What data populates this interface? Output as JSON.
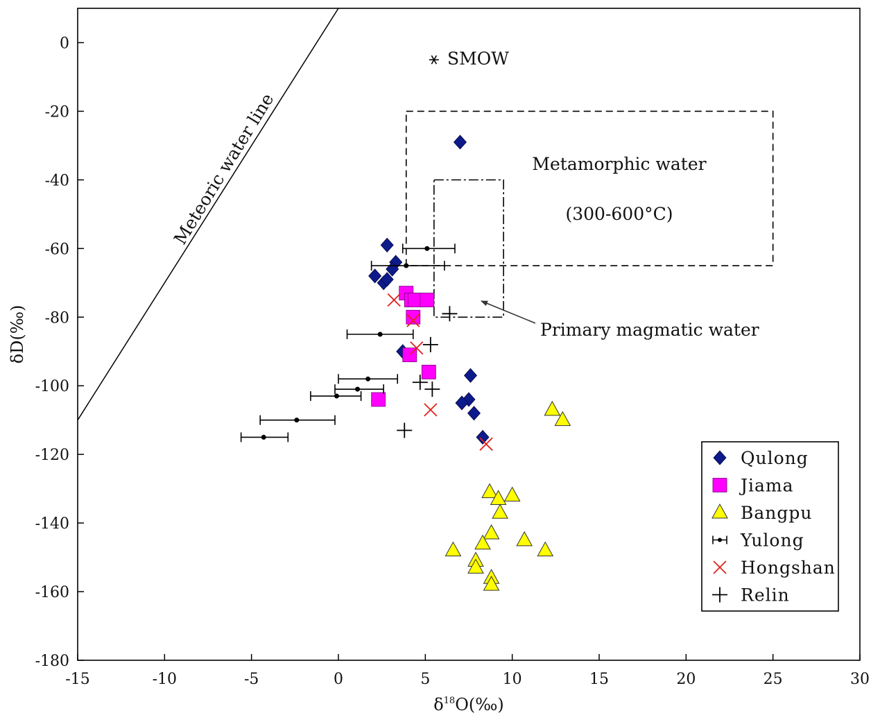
{
  "chart_data": {
    "type": "scatter",
    "xlabel_main": "δ",
    "xlabel_sup": "18",
    "xlabel_rest": "O(‰)",
    "ylabel": "δD(‰)",
    "xlim": [
      -15,
      30
    ],
    "ylim": [
      -180,
      10
    ],
    "xticks": [
      "-15",
      "-10",
      "-5",
      "0",
      "5",
      "10",
      "15",
      "20",
      "25",
      "30"
    ],
    "yticks": [
      "0",
      "-20",
      "-40",
      "-60",
      "-80",
      "-100",
      "-120",
      "-140",
      "-160",
      "-180"
    ],
    "grid": false,
    "legend_position": "bottom-right",
    "annotations": {
      "meteoric": "Meteoric water line",
      "smow": "SMOW",
      "metamorphic_1": "Metamorphic water",
      "metamorphic_2": "(300-600°C)",
      "magmatic": "Primary magmatic  water"
    },
    "reference": {
      "meteoric_line": {
        "slope": 8,
        "intercept": 10
      },
      "smow": {
        "x": 5.5,
        "y": -5
      },
      "metamorphic_box": {
        "x": [
          3.9,
          25
        ],
        "y": [
          -65,
          -20
        ]
      },
      "magmatic_box": {
        "x": [
          5.5,
          9.5
        ],
        "y": [
          -80,
          -40
        ]
      }
    },
    "series": [
      {
        "name": "Qulong",
        "marker": "diamond",
        "color": "#0d1a8c",
        "points": [
          [
            7.0,
            -29
          ],
          [
            2.8,
            -59
          ],
          [
            3.3,
            -64
          ],
          [
            3.1,
            -66
          ],
          [
            2.1,
            -68
          ],
          [
            2.6,
            -70
          ],
          [
            2.8,
            -69
          ],
          [
            3.7,
            -90
          ],
          [
            7.6,
            -97
          ],
          [
            7.5,
            -104
          ],
          [
            7.1,
            -105
          ],
          [
            7.8,
            -108
          ],
          [
            8.3,
            -115
          ]
        ]
      },
      {
        "name": "Jiama",
        "marker": "square",
        "color": "#ff00ff",
        "points": [
          [
            3.9,
            -73
          ],
          [
            4.2,
            -75
          ],
          [
            4.4,
            -75
          ],
          [
            5.1,
            -75
          ],
          [
            4.3,
            -80
          ],
          [
            4.1,
            -91
          ],
          [
            5.2,
            -96
          ],
          [
            2.3,
            -104
          ]
        ]
      },
      {
        "name": "Bangpu",
        "marker": "triangle",
        "color": "#ffff00",
        "points": [
          [
            12.3,
            -107
          ],
          [
            12.9,
            -110
          ],
          [
            8.7,
            -131
          ],
          [
            9.2,
            -133
          ],
          [
            10.0,
            -132
          ],
          [
            9.3,
            -137
          ],
          [
            8.8,
            -143
          ],
          [
            8.3,
            -146
          ],
          [
            10.7,
            -145
          ],
          [
            11.9,
            -148
          ],
          [
            6.6,
            -148
          ],
          [
            7.9,
            -151
          ],
          [
            7.9,
            -153
          ],
          [
            8.8,
            -156
          ],
          [
            8.8,
            -158
          ]
        ]
      },
      {
        "name": "Yulong",
        "marker": "errorbar",
        "color": "#000000",
        "points": [
          [
            5.1,
            -60,
            3.7,
            6.7
          ],
          [
            3.9,
            -65,
            1.9,
            6.1
          ],
          [
            2.4,
            -85,
            0.5,
            4.3
          ],
          [
            1.7,
            -98,
            0.0,
            3.4
          ],
          [
            1.1,
            -101,
            -0.2,
            2.6
          ],
          [
            -0.1,
            -103,
            -1.6,
            1.3
          ],
          [
            -2.4,
            -110,
            -4.5,
            -0.2
          ],
          [
            -4.3,
            -115,
            -5.6,
            -2.9
          ]
        ]
      },
      {
        "name": "Hongshan",
        "marker": "x",
        "color": "#e0211b",
        "points": [
          [
            3.2,
            -75
          ],
          [
            4.3,
            -81
          ],
          [
            4.5,
            -89
          ],
          [
            5.3,
            -107
          ],
          [
            8.5,
            -117
          ]
        ]
      },
      {
        "name": "Relin",
        "marker": "plus",
        "color": "#000000",
        "points": [
          [
            6.4,
            -79
          ],
          [
            5.3,
            -88
          ],
          [
            4.7,
            -99
          ],
          [
            5.4,
            -101
          ],
          [
            3.8,
            -113
          ]
        ]
      }
    ]
  }
}
